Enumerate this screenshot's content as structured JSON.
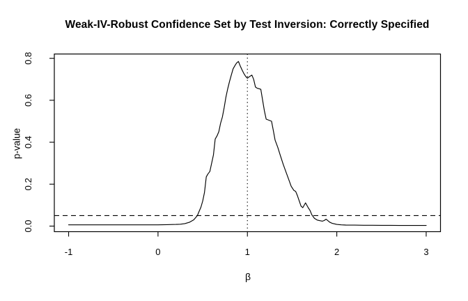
{
  "chart_data": {
    "type": "line",
    "title": "Weak-IV-Robust Confidence Set by Test Inversion: Correctly Specified",
    "xlabel": "β",
    "ylabel": "p-value",
    "x_axis": {
      "ticks": [
        -1,
        0,
        1,
        2,
        3
      ],
      "range_shown": [
        -1.16,
        3.16
      ]
    },
    "y_axis": {
      "ticks": [
        0.0,
        0.2,
        0.4,
        0.6,
        0.8
      ],
      "range_shown": [
        -0.027,
        0.821
      ]
    },
    "grid": "off",
    "legend": "none",
    "reference_lines": {
      "dashed_horizontal_p_value": 0.05,
      "dotted_vertical_beta": 1.0
    },
    "colors": {
      "foreground": "#000000",
      "background": "#ffffff"
    },
    "series": [
      {
        "name": "p-value curve",
        "x": [
          -1.0,
          -0.8,
          -0.6,
          -0.4,
          -0.2,
          0.0,
          0.1,
          0.2,
          0.25,
          0.3,
          0.35,
          0.4,
          0.44,
          0.46,
          0.48,
          0.5,
          0.52,
          0.54,
          0.56,
          0.58,
          0.6,
          0.62,
          0.64,
          0.66,
          0.68,
          0.7,
          0.72,
          0.74,
          0.76,
          0.78,
          0.8,
          0.82,
          0.84,
          0.86,
          0.88,
          0.9,
          0.92,
          0.94,
          0.96,
          0.98,
          1.0,
          1.02,
          1.05,
          1.07,
          1.09,
          1.11,
          1.13,
          1.15,
          1.17,
          1.19,
          1.21,
          1.24,
          1.27,
          1.29,
          1.31,
          1.34,
          1.37,
          1.4,
          1.43,
          1.46,
          1.49,
          1.52,
          1.54,
          1.56,
          1.58,
          1.6,
          1.62,
          1.65,
          1.68,
          1.7,
          1.72,
          1.75,
          1.78,
          1.81,
          1.84,
          1.86,
          1.88,
          1.9,
          1.92,
          1.95,
          2.0,
          2.05,
          2.1,
          2.2,
          2.3,
          2.4,
          2.5,
          2.6,
          2.7,
          2.8,
          2.9,
          3.0
        ],
        "y": [
          0.006,
          0.006,
          0.006,
          0.006,
          0.006,
          0.006,
          0.007,
          0.008,
          0.009,
          0.012,
          0.018,
          0.03,
          0.05,
          0.07,
          0.09,
          0.12,
          0.16,
          0.235,
          0.25,
          0.26,
          0.3,
          0.34,
          0.415,
          0.43,
          0.45,
          0.49,
          0.52,
          0.565,
          0.615,
          0.655,
          0.69,
          0.72,
          0.75,
          0.765,
          0.778,
          0.785,
          0.763,
          0.745,
          0.728,
          0.714,
          0.705,
          0.712,
          0.72,
          0.7,
          0.663,
          0.657,
          0.655,
          0.652,
          0.6,
          0.55,
          0.51,
          0.505,
          0.5,
          0.455,
          0.41,
          0.375,
          0.335,
          0.295,
          0.26,
          0.225,
          0.19,
          0.17,
          0.165,
          0.145,
          0.12,
          0.095,
          0.088,
          0.111,
          0.088,
          0.075,
          0.054,
          0.037,
          0.029,
          0.026,
          0.0235,
          0.027,
          0.033,
          0.026,
          0.019,
          0.013,
          0.008,
          0.006,
          0.005,
          0.0045,
          0.004,
          0.004,
          0.0035,
          0.0035,
          0.003,
          0.003,
          0.003,
          0.003
        ]
      }
    ]
  }
}
